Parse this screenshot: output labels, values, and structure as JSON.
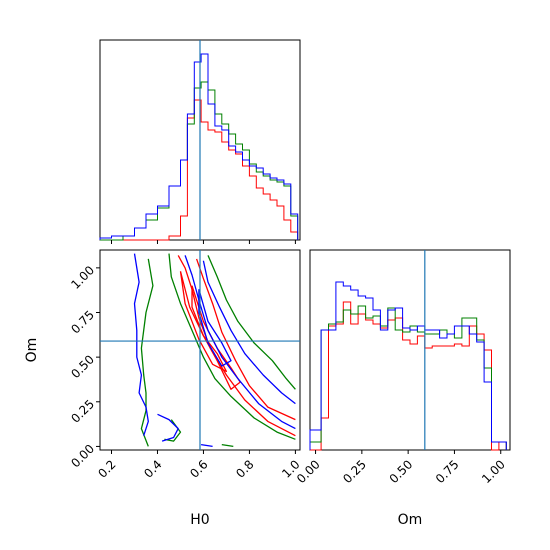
{
  "chart_data": {
    "type": "corner",
    "parameters": [
      "H0",
      "Om"
    ],
    "truth": {
      "H0": 0.585,
      "Om": 0.59
    },
    "colors": {
      "truth": "#1f77b4",
      "series": [
        "#ff0000",
        "#008000",
        "#0000ff"
      ]
    },
    "series_colors": [
      "red",
      "green",
      "blue"
    ],
    "panels": [
      {
        "id": "hist_H0",
        "type": "histogram",
        "xlim": [
          0.15,
          1.02
        ],
        "ylim": [
          0,
          1.0
        ],
        "bin_edges": [
          0.15,
          0.2,
          0.25,
          0.3,
          0.35,
          0.4,
          0.45,
          0.5,
          0.53,
          0.56,
          0.59,
          0.62,
          0.65,
          0.68,
          0.71,
          0.74,
          0.77,
          0.8,
          0.83,
          0.86,
          0.89,
          0.92,
          0.95,
          0.98,
          1.01
        ],
        "series": [
          {
            "color": "red",
            "values": [
              0,
              0,
              0,
              0,
              0,
              0,
              0.02,
              0.12,
              0.61,
              0.7,
              0.59,
              0.55,
              0.54,
              0.49,
              0.45,
              0.43,
              0.37,
              0.32,
              0.26,
              0.23,
              0.2,
              0.17,
              0.1,
              0.04
            ]
          },
          {
            "color": "green",
            "values": [
              0,
              0,
              0.02,
              0.06,
              0.1,
              0.16,
              0.27,
              0.4,
              0.58,
              0.76,
              0.79,
              0.75,
              0.63,
              0.58,
              0.53,
              0.48,
              0.45,
              0.38,
              0.34,
              0.32,
              0.3,
              0.29,
              0.27,
              0.12
            ]
          },
          {
            "color": "blue",
            "values": [
              0.01,
              0.02,
              0.02,
              0.06,
              0.13,
              0.17,
              0.27,
              0.4,
              0.63,
              0.89,
              0.93,
              0.68,
              0.57,
              0.55,
              0.47,
              0.44,
              0.4,
              0.37,
              0.36,
              0.33,
              0.31,
              0.3,
              0.28,
              0.13
            ]
          }
        ],
        "xticks": [
          0.2,
          0.4,
          0.6,
          0.8,
          1.0
        ]
      },
      {
        "id": "hist_Om",
        "type": "histogram",
        "xlim": [
          -0.03,
          1.05
        ],
        "ylim": [
          0,
          1.0
        ],
        "bin_edges": [
          -0.03,
          0.03,
          0.07,
          0.11,
          0.15,
          0.19,
          0.23,
          0.27,
          0.31,
          0.35,
          0.39,
          0.43,
          0.47,
          0.51,
          0.55,
          0.59,
          0.63,
          0.67,
          0.71,
          0.75,
          0.79,
          0.83,
          0.87,
          0.91,
          0.95,
          0.99,
          1.03
        ],
        "series": [
          {
            "color": "red",
            "values": [
              0,
              0.16,
              0.62,
              0.63,
              0.74,
              0.63,
              0.68,
              0.65,
              0.63,
              0.61,
              0.65,
              0.66,
              0.55,
              0.53,
              0.57,
              0.51,
              0.52,
              0.52,
              0.52,
              0.53,
              0.52,
              0.62,
              0.58,
              0.5,
              0.0,
              0.04
            ]
          },
          {
            "color": "green",
            "values": [
              0.04,
              0.6,
              0.63,
              0.64,
              0.7,
              0.68,
              0.72,
              0.66,
              0.67,
              0.62,
              0.71,
              0.6,
              0.59,
              0.62,
              0.59,
              0.58,
              0.58,
              0.6,
              0.58,
              0.56,
              0.66,
              0.66,
              0.55,
              0.41,
              0.04,
              0.04
            ]
          },
          {
            "color": "blue",
            "values": [
              0.1,
              0.6,
              0.6,
              0.84,
              0.82,
              0.8,
              0.77,
              0.76,
              0.7,
              0.6,
              0.7,
              0.71,
              0.61,
              0.6,
              0.62,
              0.6,
              0.6,
              0.56,
              0.58,
              0.62,
              0.62,
              0.58,
              0.54,
              0.34,
              0.04,
              0.04
            ]
          }
        ],
        "xticks": [
          0.0,
          0.25,
          0.5,
          0.75,
          1.0
        ]
      },
      {
        "id": "contour_H0_Om",
        "type": "contour",
        "xlim": [
          0.15,
          1.02
        ],
        "ylim": [
          -0.02,
          1.1
        ],
        "xlabel": "H0",
        "ylabel": "Om",
        "xticks": [
          0.2,
          0.4,
          0.6,
          0.8,
          1.0
        ],
        "yticks": [
          0.0,
          0.25,
          0.5,
          0.75,
          1.0
        ],
        "contours": [
          {
            "color": "red",
            "points": [
              [
                0.49,
                1.07
              ],
              [
                0.52,
                1.0
              ],
              [
                0.55,
                0.88
              ],
              [
                0.58,
                0.72
              ],
              [
                0.63,
                0.55
              ],
              [
                0.7,
                0.4
              ],
              [
                0.78,
                0.26
              ],
              [
                0.88,
                0.14
              ],
              [
                1.0,
                0.06
              ]
            ]
          },
          {
            "color": "red",
            "points": [
              [
                0.57,
                1.05
              ],
              [
                0.6,
                0.94
              ],
              [
                0.64,
                0.8
              ],
              [
                0.68,
                0.64
              ],
              [
                0.74,
                0.48
              ],
              [
                0.8,
                0.34
              ],
              [
                0.88,
                0.22
              ],
              [
                1.0,
                0.15
              ]
            ]
          },
          {
            "color": "red",
            "points": [
              [
                0.55,
                0.9
              ],
              [
                0.6,
                0.7
              ],
              [
                0.66,
                0.55
              ],
              [
                0.72,
                0.44
              ],
              [
                0.76,
                0.36
              ],
              [
                0.72,
                0.32
              ],
              [
                0.66,
                0.48
              ],
              [
                0.6,
                0.62
              ],
              [
                0.55,
                0.78
              ],
              [
                0.55,
                0.9
              ]
            ]
          },
          {
            "color": "red",
            "points": [
              [
                0.5,
                0.98
              ],
              [
                0.54,
                0.78
              ],
              [
                0.6,
                0.62
              ],
              [
                0.66,
                0.52
              ],
              [
                0.7,
                0.42
              ],
              [
                0.64,
                0.46
              ],
              [
                0.58,
                0.6
              ],
              [
                0.52,
                0.8
              ],
              [
                0.5,
                0.98
              ]
            ]
          },
          {
            "color": "green",
            "points": [
              [
                0.36,
                1.05
              ],
              [
                0.38,
                0.9
              ],
              [
                0.35,
                0.75
              ],
              [
                0.33,
                0.55
              ],
              [
                0.34,
                0.4
              ],
              [
                0.35,
                0.3
              ],
              [
                0.35,
                0.2
              ],
              [
                0.33,
                0.1
              ],
              [
                0.36,
                0.0
              ]
            ]
          },
          {
            "color": "green",
            "points": [
              [
                0.45,
                1.08
              ],
              [
                0.46,
                0.95
              ],
              [
                0.5,
                0.8
              ],
              [
                0.55,
                0.65
              ],
              [
                0.6,
                0.5
              ],
              [
                0.65,
                0.38
              ],
              [
                0.72,
                0.28
              ],
              [
                0.82,
                0.16
              ],
              [
                0.92,
                0.08
              ],
              [
                1.0,
                0.04
              ]
            ]
          },
          {
            "color": "green",
            "points": [
              [
                0.62,
                1.07
              ],
              [
                0.66,
                0.95
              ],
              [
                0.7,
                0.82
              ],
              [
                0.75,
                0.7
              ],
              [
                0.82,
                0.58
              ],
              [
                0.9,
                0.48
              ],
              [
                0.96,
                0.38
              ],
              [
                1.0,
                0.32
              ]
            ]
          },
          {
            "color": "green",
            "points": [
              [
                0.46,
                0.15
              ],
              [
                0.5,
                0.08
              ],
              [
                0.47,
                0.03
              ],
              [
                0.43,
                0.04
              ]
            ]
          },
          {
            "color": "green",
            "points": [
              [
                0.68,
                0.01
              ],
              [
                0.73,
                0.0
              ]
            ]
          },
          {
            "color": "blue",
            "points": [
              [
                0.3,
                1.08
              ],
              [
                0.32,
                0.92
              ],
              [
                0.3,
                0.8
              ],
              [
                0.31,
                0.65
              ],
              [
                0.31,
                0.5
              ],
              [
                0.33,
                0.4
              ],
              [
                0.32,
                0.3
              ],
              [
                0.35,
                0.22
              ],
              [
                0.36,
                0.14
              ],
              [
                0.34,
                0.06
              ]
            ]
          },
          {
            "color": "blue",
            "points": [
              [
                0.4,
                0.18
              ],
              [
                0.45,
                0.15
              ],
              [
                0.49,
                0.1
              ],
              [
                0.47,
                0.05
              ],
              [
                0.42,
                0.03
              ]
            ]
          },
          {
            "color": "blue",
            "points": [
              [
                0.52,
                1.07
              ],
              [
                0.55,
                0.96
              ],
              [
                0.58,
                0.82
              ],
              [
                0.62,
                0.65
              ],
              [
                0.68,
                0.5
              ],
              [
                0.75,
                0.38
              ],
              [
                0.84,
                0.24
              ],
              [
                0.94,
                0.14
              ],
              [
                1.0,
                0.1
              ]
            ]
          },
          {
            "color": "blue",
            "points": [
              [
                0.6,
                1.04
              ],
              [
                0.62,
                0.92
              ],
              [
                0.67,
                0.78
              ],
              [
                0.72,
                0.65
              ],
              [
                0.78,
                0.52
              ],
              [
                0.86,
                0.4
              ],
              [
                0.94,
                0.3
              ],
              [
                1.0,
                0.24
              ]
            ]
          },
          {
            "color": "blue",
            "points": [
              [
                0.58,
                0.88
              ],
              [
                0.62,
                0.7
              ],
              [
                0.68,
                0.58
              ],
              [
                0.72,
                0.48
              ],
              [
                0.68,
                0.45
              ],
              [
                0.62,
                0.58
              ],
              [
                0.58,
                0.75
              ],
              [
                0.58,
                0.88
              ]
            ]
          },
          {
            "color": "blue",
            "points": [
              [
                0.59,
                0.01
              ],
              [
                0.64,
                0.0
              ]
            ]
          }
        ]
      }
    ]
  }
}
